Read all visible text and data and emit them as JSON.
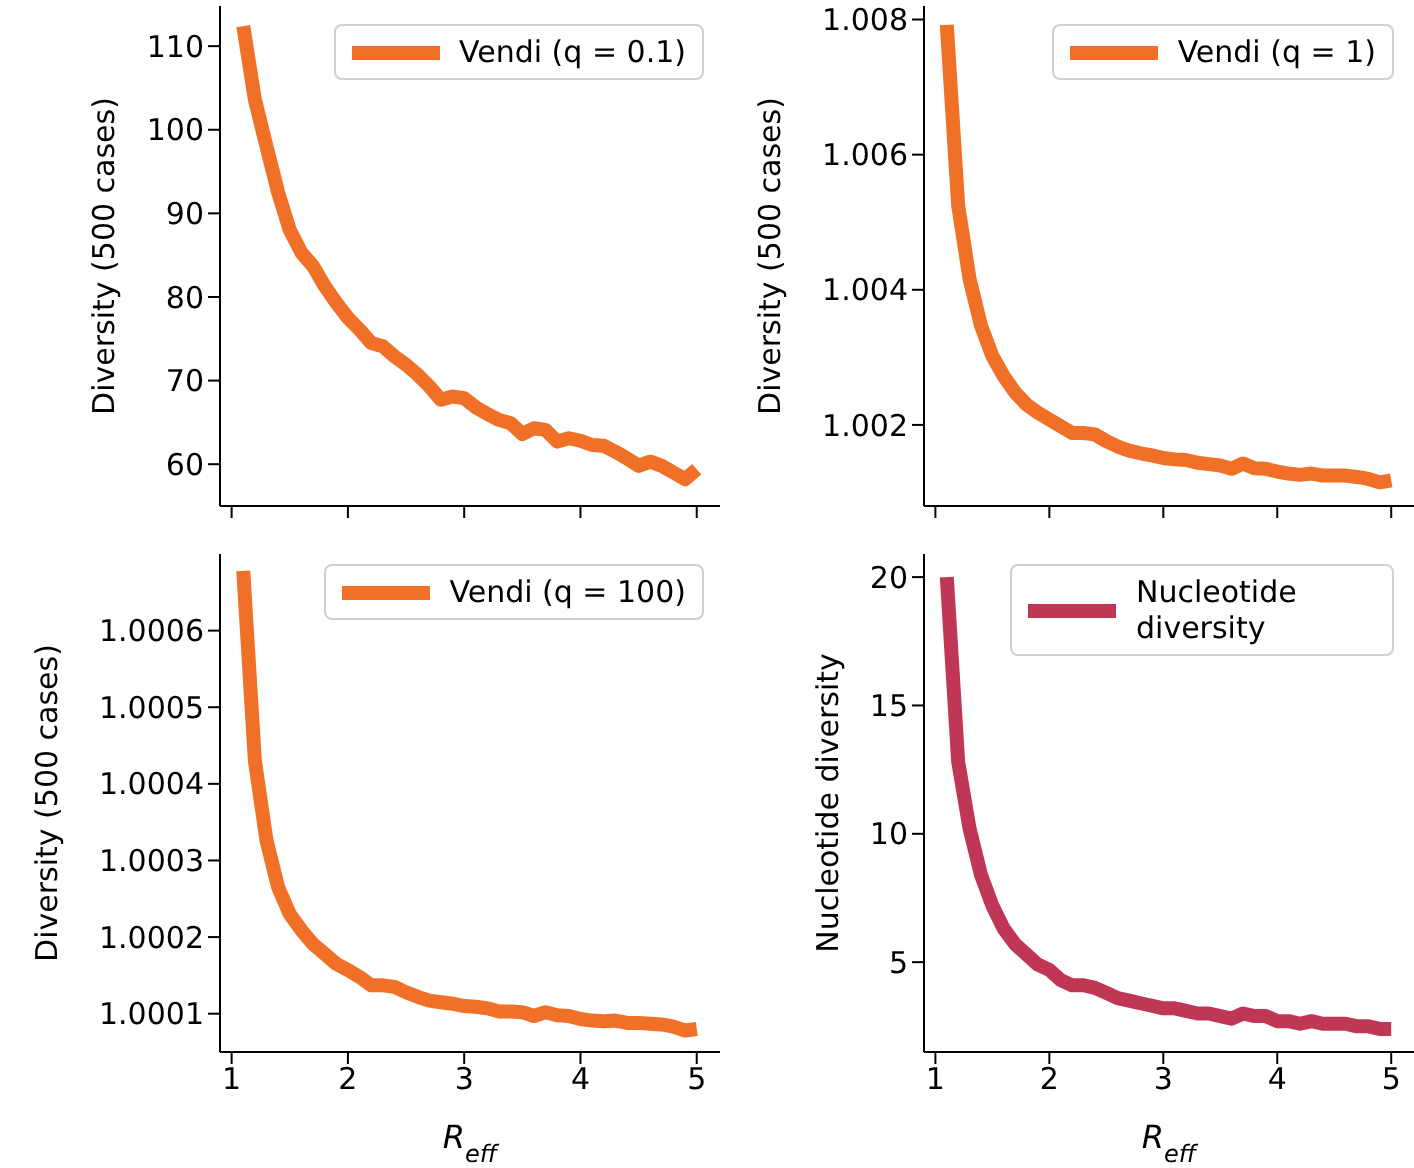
{
  "chart_data": [
    {
      "type": "line",
      "ylabel": "Diversity (500 cases)",
      "x": [
        1.1,
        1.2,
        1.3,
        1.4,
        1.5,
        1.6,
        1.7,
        1.8,
        1.9,
        2.0,
        2.1,
        2.2,
        2.3,
        2.4,
        2.5,
        2.6,
        2.7,
        2.8,
        2.9,
        3.0,
        3.1,
        3.2,
        3.3,
        3.4,
        3.5,
        3.6,
        3.7,
        3.8,
        3.9,
        4.0,
        4.1,
        4.2,
        4.3,
        4.4,
        4.5,
        4.6,
        4.7,
        4.8,
        4.9,
        5.0
      ],
      "series": [
        {
          "name": "Vendi (q = 0.1)",
          "color": "#f07028",
          "values": [
            112.4,
            103.6,
            98,
            92.5,
            88,
            85.3,
            83.7,
            81.3,
            79.3,
            77.5,
            76.1,
            74.5,
            74.1,
            72.9,
            71.9,
            70.7,
            69.3,
            67.7,
            68.1,
            67.9,
            66.8,
            66,
            65.3,
            64.9,
            63.6,
            64.3,
            64.1,
            62.7,
            63.1,
            62.8,
            62.3,
            62.2,
            61.5,
            60.7,
            59.8,
            60.3,
            59.8,
            59,
            58.2,
            59.4
          ]
        }
      ],
      "xlim": [
        0.9,
        5.2
      ],
      "xticks": [
        1,
        2,
        3,
        4,
        5
      ],
      "ylim": [
        55,
        114.8
      ],
      "yticks": [
        60,
        70,
        80,
        90,
        100,
        110
      ],
      "legend": "top right",
      "tick_labels": "y"
    },
    {
      "type": "line",
      "ylabel": "Diversity (500 cases)",
      "x": [
        1.1,
        1.2,
        1.3,
        1.4,
        1.5,
        1.6,
        1.7,
        1.8,
        1.9,
        2.0,
        2.1,
        2.2,
        2.3,
        2.4,
        2.5,
        2.6,
        2.7,
        2.8,
        2.9,
        3.0,
        3.1,
        3.2,
        3.3,
        3.4,
        3.5,
        3.6,
        3.7,
        3.8,
        3.9,
        4.0,
        4.1,
        4.2,
        4.3,
        4.4,
        4.5,
        4.6,
        4.7,
        4.8,
        4.9,
        5.0
      ],
      "series": [
        {
          "name": "Vendi (q = 1)",
          "color": "#f07028",
          "values": [
            1.00792,
            1.00525,
            1.00416,
            1.00347,
            1.00302,
            1.00272,
            1.00248,
            1.0023,
            1.00218,
            1.00208,
            1.00198,
            1.00188,
            1.00188,
            1.00186,
            1.00176,
            1.00168,
            1.00162,
            1.00158,
            1.00155,
            1.00151,
            1.00149,
            1.00148,
            1.00144,
            1.00142,
            1.0014,
            1.00135,
            1.00143,
            1.00136,
            1.00135,
            1.00131,
            1.00128,
            1.00126,
            1.00128,
            1.00125,
            1.00125,
            1.00125,
            1.00123,
            1.0012,
            1.00115,
            1.00118
          ]
        }
      ],
      "xlim": [
        0.9,
        5.2
      ],
      "xticks": [
        1,
        2,
        3,
        4,
        5
      ],
      "ylim": [
        1.0008,
        1.0082
      ],
      "yticks": [
        1.002,
        1.004,
        1.006,
        1.008
      ],
      "legend": "top right",
      "tick_labels": "y"
    },
    {
      "type": "line",
      "xlabel": "R$_{eff}$",
      "ylabel": "Diversity (500 cases)",
      "x": [
        1.1,
        1.2,
        1.3,
        1.4,
        1.5,
        1.6,
        1.7,
        1.8,
        1.9,
        2.0,
        2.1,
        2.2,
        2.3,
        2.4,
        2.5,
        2.6,
        2.7,
        2.8,
        2.9,
        3.0,
        3.1,
        3.2,
        3.3,
        3.4,
        3.5,
        3.6,
        3.7,
        3.8,
        3.9,
        4.0,
        4.1,
        4.2,
        4.3,
        4.4,
        4.5,
        4.6,
        4.7,
        4.8,
        4.9,
        5.0
      ],
      "series": [
        {
          "name": "Vendi (q = 100)",
          "color": "#f07028",
          "values": [
            1.000678,
            1.00043,
            1.000326,
            1.000265,
            1.00023,
            1.000209,
            1.000191,
            1.000178,
            1.000165,
            1.000157,
            1.000148,
            1.000137,
            1.000137,
            1.000135,
            1.000128,
            1.000122,
            1.000117,
            1.000115,
            1.000113,
            1.00011,
            1.000109,
            1.000107,
            1.000103,
            1.000103,
            1.000102,
            1.000097,
            1.000102,
            1.000098,
            1.000097,
            1.000093,
            1.000091,
            1.00009,
            1.000091,
            1.000088,
            1.000088,
            1.000087,
            1.000086,
            1.000083,
            1.000078,
            1.00008
          ]
        }
      ],
      "xlim": [
        0.9,
        5.2
      ],
      "xticks": [
        1,
        2,
        3,
        4,
        5
      ],
      "ylim": [
        1.00005,
        1.0007
      ],
      "yticks": [
        1.0001,
        1.0002,
        1.0003,
        1.0004,
        1.0005,
        1.0006
      ],
      "legend": "top right"
    },
    {
      "type": "line",
      "xlabel": "R$_{eff}$",
      "ylabel": "Nucleotide diversity",
      "x": [
        1.1,
        1.2,
        1.3,
        1.4,
        1.5,
        1.6,
        1.7,
        1.8,
        1.9,
        2.0,
        2.1,
        2.2,
        2.3,
        2.4,
        2.5,
        2.6,
        2.7,
        2.8,
        2.9,
        3.0,
        3.1,
        3.2,
        3.3,
        3.4,
        3.5,
        3.6,
        3.7,
        3.8,
        3.9,
        4.0,
        4.1,
        4.2,
        4.3,
        4.4,
        4.5,
        4.6,
        4.7,
        4.8,
        4.9,
        5.0
      ],
      "series": [
        {
          "name": "Nucleotide diversity",
          "color": "#c03655",
          "values": [
            20,
            12.8,
            10.2,
            8.4,
            7.2,
            6.3,
            5.7,
            5.3,
            4.9,
            4.7,
            4.3,
            4.1,
            4.1,
            4.0,
            3.8,
            3.6,
            3.5,
            3.4,
            3.3,
            3.2,
            3.2,
            3.1,
            3.0,
            3.0,
            2.9,
            2.8,
            3.0,
            2.9,
            2.9,
            2.7,
            2.7,
            2.6,
            2.7,
            2.6,
            2.6,
            2.6,
            2.5,
            2.5,
            2.4,
            2.4
          ]
        }
      ],
      "xlim": [
        0.9,
        5.2
      ],
      "xticks": [
        1,
        2,
        3,
        4,
        5
      ],
      "ylim": [
        1.5,
        20.9
      ],
      "yticks": [
        5,
        10,
        15,
        20
      ],
      "legend": "top right"
    }
  ]
}
